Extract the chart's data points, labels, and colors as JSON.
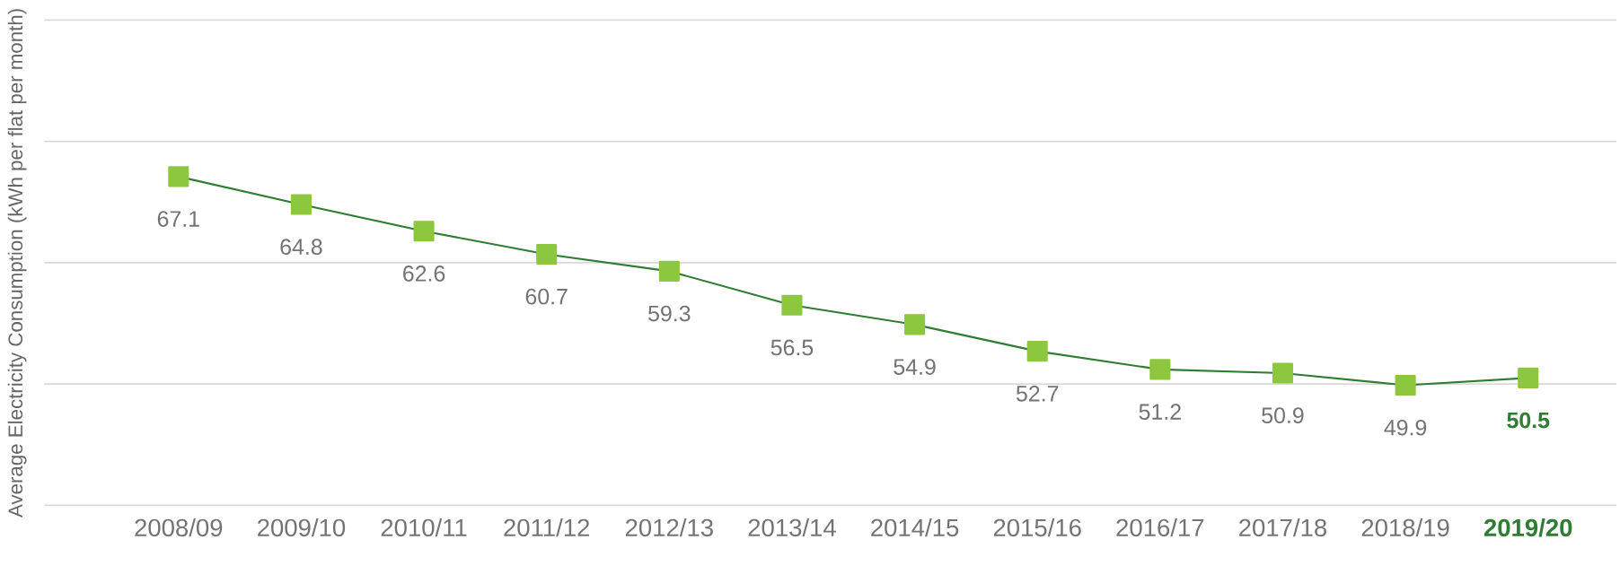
{
  "chart_data": {
    "type": "line",
    "ylabel": "Average Electricity Consumption (kWh per flat per month)",
    "categories": [
      "2008/09",
      "2009/10",
      "2010/11",
      "2011/12",
      "2012/13",
      "2013/14",
      "2014/15",
      "2015/16",
      "2016/17",
      "2017/18",
      "2018/19",
      "2019/20"
    ],
    "values": [
      67.1,
      64.8,
      62.6,
      60.7,
      59.3,
      56.5,
      54.9,
      52.7,
      51.2,
      50.9,
      49.9,
      50.5
    ],
    "color": "#8dc63f",
    "ylim": [
      40,
      80
    ],
    "yticks": [
      {
        "value": 40,
        "label": null
      },
      {
        "value": 50,
        "label": null
      },
      {
        "value": 60,
        "label": null
      },
      {
        "value": 70,
        "label": null
      },
      {
        "value": 80,
        "label": null
      }
    ],
    "tick_labels": "x",
    "grid": "y",
    "marker": "square",
    "line_style": "solid",
    "data_labels": true
  }
}
